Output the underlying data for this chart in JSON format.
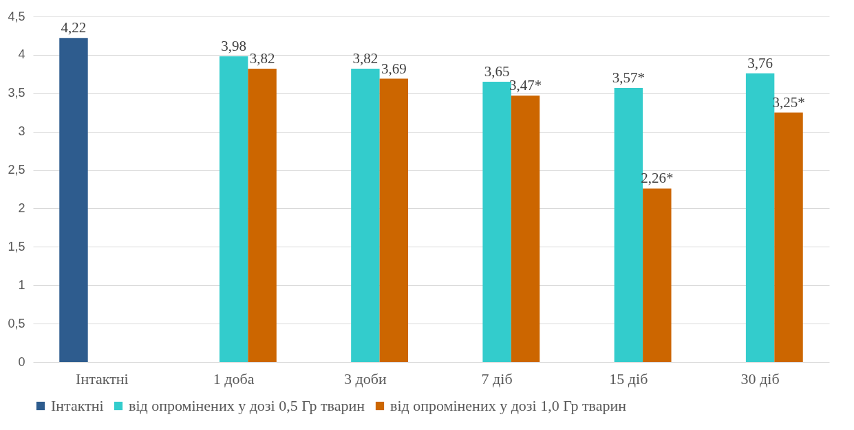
{
  "chart_data": {
    "type": "bar",
    "categories": [
      "Інтактні",
      "1 доба",
      "3 доби",
      "7 діб",
      "15 діб",
      "30 діб"
    ],
    "series": [
      {
        "name": "Інтактні",
        "color": "#2e5c8e",
        "values": [
          4.22,
          null,
          null,
          null,
          null,
          null
        ],
        "value_labels": [
          "4,22",
          null,
          null,
          null,
          null,
          null
        ]
      },
      {
        "name": "від опромінених у дозі 0,5 Гр тварин",
        "color": "#33cccc",
        "values": [
          null,
          3.98,
          3.82,
          3.65,
          3.57,
          3.76
        ],
        "value_labels": [
          null,
          "3,98",
          "3,82",
          "3,65",
          "3,57*",
          "3,76"
        ]
      },
      {
        "name": "від опромінених у дозі 1,0 Гр тварин",
        "color": "#cc6600",
        "values": [
          null,
          3.82,
          3.69,
          3.47,
          2.26,
          3.25
        ],
        "value_labels": [
          null,
          "3,82",
          "3,69",
          "3,47*",
          "2,26*",
          "3,25*"
        ]
      }
    ],
    "ylim": [
      0,
      4.5
    ],
    "yticks": [
      0,
      {
        "value": 0.5,
        "label": "0,5"
      },
      1,
      {
        "value": 1.5,
        "label": "1,5"
      },
      2,
      {
        "value": 2.5,
        "label": "2,5"
      },
      3,
      {
        "value": 3.5,
        "label": "3,5"
      },
      4,
      {
        "value": 4.5,
        "label": "4,5"
      }
    ],
    "grid": "y",
    "legend": "bottom"
  }
}
